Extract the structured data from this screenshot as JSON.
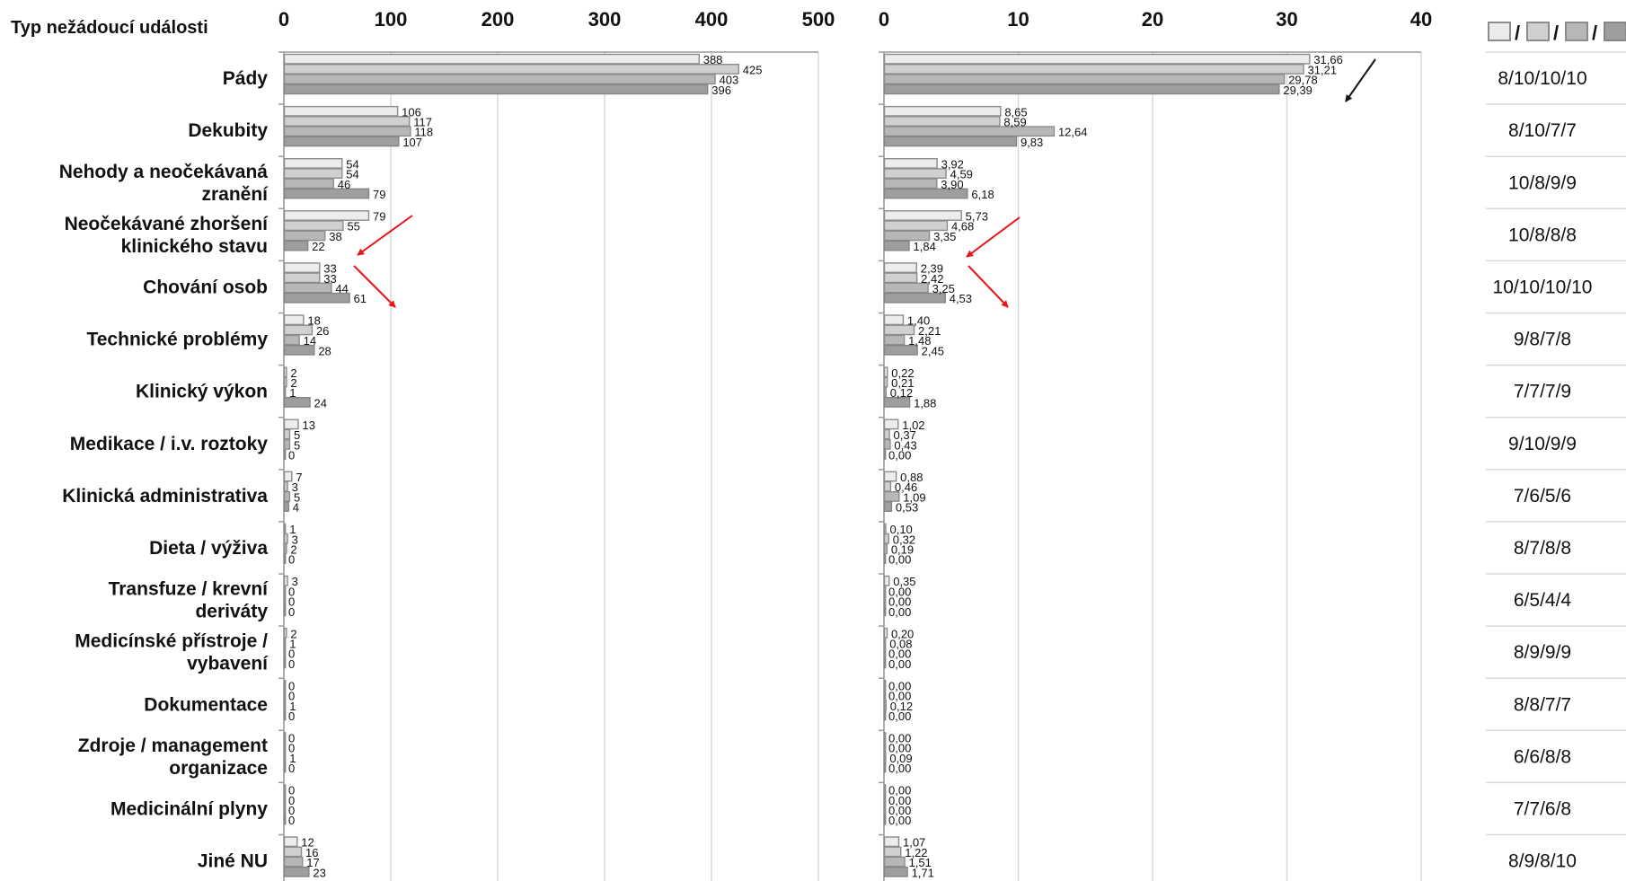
{
  "header": {
    "category_title": "Typ nežádoucí události"
  },
  "colors": {
    "s1": "#ececec",
    "s2": "#d0d0d0",
    "s3": "#b7b7b7",
    "s4": "#9e9e9e",
    "grid": "#d8d8d8",
    "arrow_red": "#e8141b",
    "arrow_black": "#111111"
  },
  "legend": {
    "separator": "/"
  },
  "arrows": {
    "left_panel": [
      "red-down-left",
      "red-down-right"
    ],
    "right_panel": [
      "black-down-left",
      "red-down-left",
      "red-down-right"
    ]
  },
  "chart_data": [
    {
      "type": "bar",
      "orientation": "horizontal",
      "title": "",
      "xlabel": "",
      "ylabel": "Typ nežádoucí události",
      "xlim": [
        0,
        500
      ],
      "ticks": [
        "0",
        "100",
        "200",
        "300",
        "400",
        "500"
      ],
      "grid": true,
      "categories": [
        "Pády",
        "Dekubity",
        "Nehody a neočekávaná zranění",
        "Neočekávané zhoršení klinického stavu",
        "Chování osob",
        "Technické problémy",
        "Klinický výkon",
        "Medikace / i.v. roztoky",
        "Klinická administrativa",
        "Dieta / výživa",
        "Transfuze / krevní deriváty",
        "Medicínské přístroje / vybavení",
        "Dokumentace",
        "Zdroje / management organizace",
        "Medicinální plyny",
        "Jiné NU"
      ],
      "series": [
        {
          "values": [
            388,
            106,
            54,
            79,
            33,
            18,
            2,
            13,
            7,
            1,
            3,
            2,
            0,
            0,
            0,
            12
          ]
        },
        {
          "values": [
            425,
            117,
            54,
            55,
            33,
            26,
            2,
            5,
            3,
            3,
            0,
            1,
            0,
            0,
            0,
            16
          ]
        },
        {
          "values": [
            403,
            118,
            46,
            38,
            44,
            14,
            1,
            5,
            5,
            2,
            0,
            0,
            1,
            1,
            0,
            17
          ]
        },
        {
          "values": [
            396,
            107,
            79,
            22,
            61,
            28,
            24,
            0,
            4,
            0,
            0,
            0,
            0,
            0,
            0,
            23
          ]
        }
      ]
    },
    {
      "type": "bar",
      "orientation": "horizontal",
      "title": "",
      "xlabel": "",
      "xlim": [
        0,
        40
      ],
      "ticks": [
        "0",
        "10",
        "20",
        "30",
        "40"
      ],
      "grid": true,
      "series": [
        {
          "values": [
            31.66,
            8.65,
            3.92,
            5.73,
            2.39,
            1.4,
            0.22,
            1.02,
            0.88,
            0.1,
            0.35,
            0.2,
            0.0,
            0.0,
            0.0,
            1.07
          ],
          "labels": [
            "31,66",
            "8,65",
            "3,92",
            "5,73",
            "2,39",
            "1,40",
            "0,22",
            "1,02",
            "0,88",
            "0,10",
            "0,35",
            "0,20",
            "0,00",
            "0,00",
            "0,00",
            "1,07"
          ]
        },
        {
          "values": [
            31.21,
            8.59,
            4.59,
            4.68,
            2.42,
            2.21,
            0.21,
            0.37,
            0.46,
            0.32,
            0.0,
            0.08,
            0.0,
            0.0,
            0.0,
            1.22
          ],
          "labels": [
            "31,21",
            "8,59",
            "4,59",
            "4,68",
            "2,42",
            "2,21",
            "0,21",
            "0,37",
            "0,46",
            "0,32",
            "0,00",
            "0,08",
            "0,00",
            "0,00",
            "0,00",
            "1,22"
          ]
        },
        {
          "values": [
            29.78,
            12.64,
            3.9,
            3.35,
            3.25,
            1.48,
            0.12,
            0.43,
            1.09,
            0.19,
            0.0,
            0.0,
            0.12,
            0.09,
            0.0,
            1.51
          ],
          "labels": [
            "29,78",
            "12,64",
            "3,90",
            "3,35",
            "3,25",
            "1,48",
            "0,12",
            "0,43",
            "1,09",
            "0,19",
            "0,00",
            "0,00",
            "0,12",
            "0,09",
            "0,00",
            "1,51"
          ]
        },
        {
          "values": [
            29.39,
            9.83,
            6.18,
            1.84,
            4.53,
            2.45,
            1.88,
            0.0,
            0.53,
            0.0,
            0.0,
            0.0,
            0.0,
            0.0,
            0.0,
            1.71
          ],
          "labels": [
            "29,39",
            "9,83",
            "6,18",
            "1,84",
            "4,53",
            "2,45",
            "1,88",
            "0,00",
            "0,53",
            "0,00",
            "0,00",
            "0,00",
            "0,00",
            "0,00",
            "0,00",
            "1,71"
          ]
        }
      ]
    },
    {
      "type": "table",
      "column": "legend-counts",
      "values": [
        "8/10/10/10",
        "8/10/7/7",
        "10/8/9/9",
        "10/8/8/8",
        "10/10/10/10",
        "9/8/7/8",
        "7/7/7/9",
        "9/10/9/9",
        "7/6/5/6",
        "8/7/8/8",
        "6/5/4/4",
        "8/9/9/9",
        "8/8/7/7",
        "6/6/8/8",
        "7/7/6/8",
        "8/9/8/10"
      ]
    }
  ]
}
